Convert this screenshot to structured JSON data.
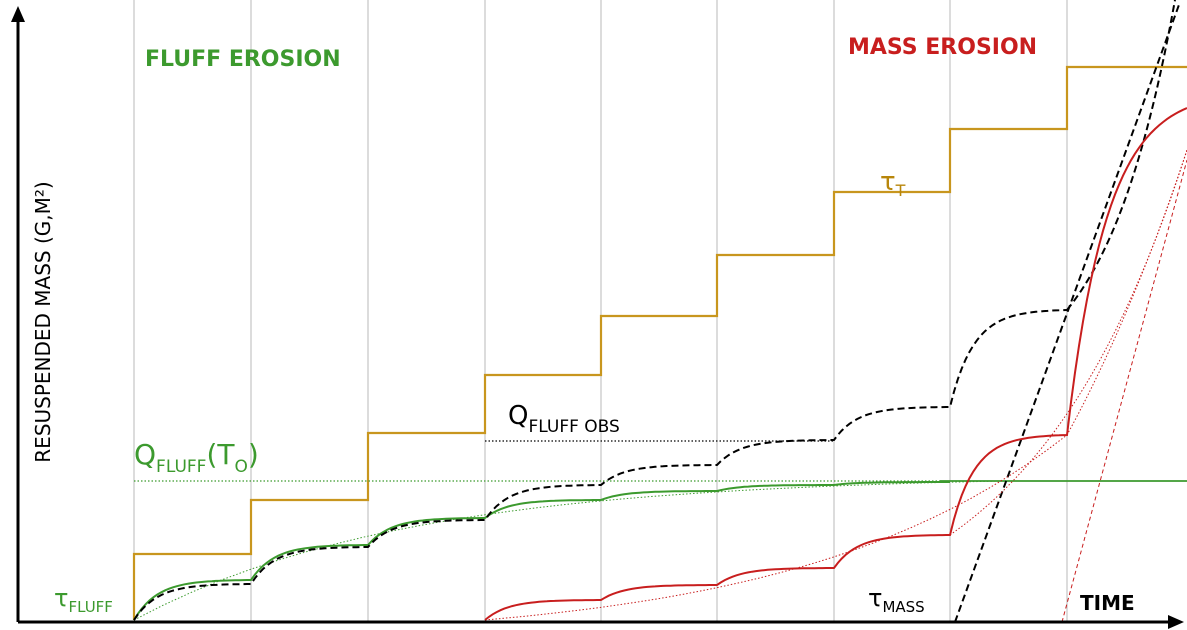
{
  "labels": {
    "fluff_erosion": "FLUFF EROSION",
    "mass_erosion": "MASS EROSION",
    "y_axis": "RESUSPENDED MASS (G,M²)",
    "x_axis": "TIME"
  },
  "annotations": {
    "tau_t": {
      "symbol": "τ",
      "sub": "T"
    },
    "q_fluff_obs": {
      "symbol": "Q",
      "sub": "FLUFF OBS"
    },
    "q_fluff_t0": {
      "symbol": "Q",
      "sub": "FLUFF",
      "rest": "(T",
      "rest_sub": "O",
      "close": ")"
    },
    "tau_fluff": {
      "symbol": "τ",
      "sub": "FLUFF"
    },
    "tau_mass": {
      "symbol": "τ",
      "sub": "MASS"
    }
  }
}
